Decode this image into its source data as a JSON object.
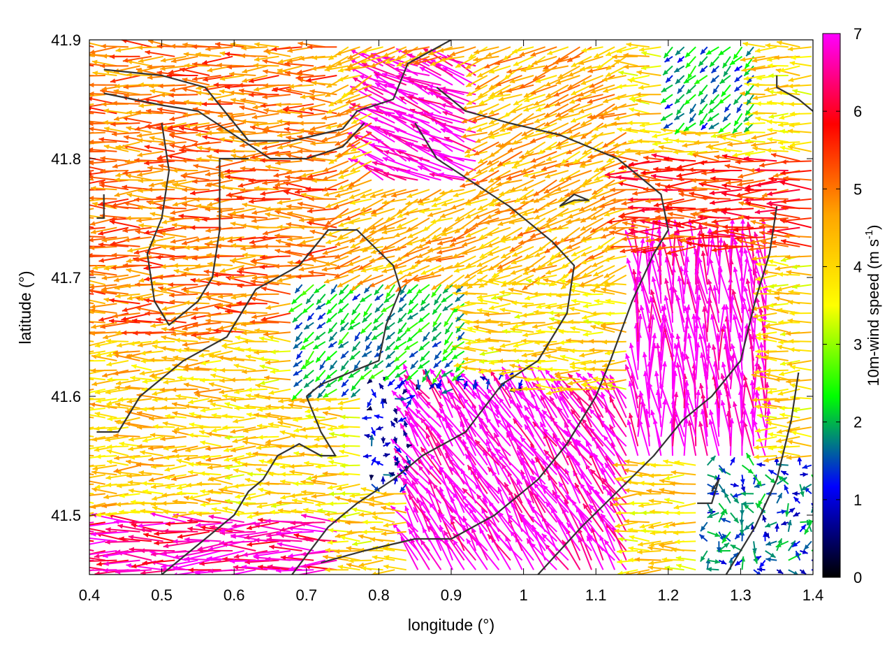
{
  "chart_data": {
    "type": "vector-field",
    "title": "",
    "xlabel": "longitude (°)",
    "ylabel": "latitude (°)",
    "xlim": [
      0.4,
      1.4
    ],
    "ylim": [
      41.45,
      41.9
    ],
    "xticks": [
      "0.4",
      "0.5",
      "0.6",
      "0.7",
      "0.8",
      "0.9",
      "1",
      "1.1",
      "1.2",
      "1.3",
      "1.4"
    ],
    "yticks": [
      "41.5",
      "41.6",
      "41.7",
      "41.8",
      "41.9"
    ],
    "grid": false,
    "colorbar": {
      "label": "10m-wind speed (m s",
      "label_superscript": "-1",
      "label_close": ")",
      "range": [
        0,
        7
      ],
      "ticks": [
        "0",
        "1",
        "2",
        "3",
        "4",
        "5",
        "6",
        "7"
      ],
      "palette": [
        "#000000",
        "#0000ff",
        "#00ff00",
        "#ffff00",
        "#ffa500",
        "#ff0000",
        "#ff00ff"
      ]
    },
    "wind_regions": [
      {
        "lon": [
          0.4,
          0.75
        ],
        "lat": [
          41.65,
          41.9
        ],
        "speed": 5.0,
        "direction": "west"
      },
      {
        "lon": [
          0.4,
          0.6
        ],
        "lat": [
          41.5,
          41.65
        ],
        "speed": 4.2,
        "direction": "west"
      },
      {
        "lon": [
          0.75,
          1.15
        ],
        "lat": [
          41.7,
          41.9
        ],
        "speed": 4.5,
        "direction": "west-southwest"
      },
      {
        "lon": [
          0.8,
          0.95
        ],
        "lat": [
          41.78,
          41.88
        ],
        "speed": 7.0,
        "direction": "west-northwest"
      },
      {
        "lon": [
          0.68,
          0.92
        ],
        "lat": [
          41.6,
          41.7
        ],
        "speed": 2.0,
        "direction": "southwest"
      },
      {
        "lon": [
          0.78,
          1.0
        ],
        "lat": [
          41.52,
          41.62
        ],
        "speed": 1.0,
        "direction": "variable"
      },
      {
        "lon": [
          0.85,
          1.15
        ],
        "lat": [
          41.45,
          41.6
        ],
        "speed": 7.0,
        "direction": "northwest"
      },
      {
        "lon": [
          1.15,
          1.35
        ],
        "lat": [
          41.55,
          41.72
        ],
        "speed": 7.0,
        "direction": "north"
      },
      {
        "lon": [
          1.15,
          1.4
        ],
        "lat": [
          41.72,
          41.8
        ],
        "speed": 5.5,
        "direction": "west"
      },
      {
        "lon": [
          1.25,
          1.4
        ],
        "lat": [
          41.45,
          41.55
        ],
        "speed": 1.5,
        "direction": "variable"
      },
      {
        "lon": [
          1.2,
          1.32
        ],
        "lat": [
          41.83,
          41.9
        ],
        "speed": 1.8,
        "direction": "southwest"
      },
      {
        "lon": [
          0.4,
          0.75
        ],
        "lat": [
          41.45,
          41.5
        ],
        "speed": 6.5,
        "direction": "west"
      }
    ],
    "contours": [
      [
        [
          0.42,
          41.875
        ],
        [
          0.5,
          41.87
        ],
        [
          0.56,
          41.86
        ],
        [
          0.6,
          41.83
        ],
        [
          0.62,
          41.815
        ],
        [
          0.68,
          41.815
        ],
        [
          0.75,
          41.825
        ],
        [
          0.77,
          41.84
        ],
        [
          0.82,
          41.85
        ],
        [
          0.84,
          41.88
        ],
        [
          0.87,
          41.89
        ],
        [
          0.9,
          41.9
        ]
      ],
      [
        [
          0.42,
          41.855
        ],
        [
          0.5,
          41.845
        ],
        [
          0.55,
          41.84
        ],
        [
          0.6,
          41.82
        ],
        [
          0.65,
          41.8
        ],
        [
          0.7,
          41.8
        ],
        [
          0.75,
          41.81
        ],
        [
          0.78,
          41.83
        ]
      ],
      [
        [
          0.5,
          41.83
        ],
        [
          0.51,
          41.79
        ],
        [
          0.5,
          41.75
        ],
        [
          0.48,
          41.72
        ],
        [
          0.49,
          41.68
        ],
        [
          0.51,
          41.66
        ],
        [
          0.55,
          41.68
        ],
        [
          0.57,
          41.7
        ],
        [
          0.58,
          41.74
        ],
        [
          0.58,
          41.8
        ],
        [
          0.62,
          41.8
        ]
      ],
      [
        [
          0.41,
          41.57
        ],
        [
          0.44,
          41.57
        ],
        [
          0.47,
          41.6
        ],
        [
          0.53,
          41.63
        ],
        [
          0.59,
          41.65
        ],
        [
          0.63,
          41.69
        ],
        [
          0.69,
          41.71
        ],
        [
          0.73,
          41.74
        ],
        [
          0.77,
          41.74
        ],
        [
          0.82,
          41.71
        ],
        [
          0.83,
          41.69
        ],
        [
          0.81,
          41.66
        ],
        [
          0.8,
          41.63
        ],
        [
          0.76,
          41.62
        ],
        [
          0.72,
          41.61
        ],
        [
          0.7,
          41.6
        ]
      ],
      [
        [
          0.7,
          41.6
        ],
        [
          0.72,
          41.57
        ],
        [
          0.74,
          41.55
        ],
        [
          0.72,
          41.55
        ],
        [
          0.69,
          41.56
        ],
        [
          0.66,
          41.55
        ],
        [
          0.64,
          41.53
        ],
        [
          0.62,
          41.52
        ],
        [
          0.6,
          41.5
        ],
        [
          0.56,
          41.48
        ],
        [
          0.52,
          41.46
        ],
        [
          0.5,
          41.45
        ]
      ],
      [
        [
          0.68,
          41.45
        ],
        [
          0.73,
          41.49
        ],
        [
          0.77,
          41.51
        ],
        [
          0.82,
          41.53
        ],
        [
          0.86,
          41.55
        ],
        [
          0.92,
          41.57
        ],
        [
          0.97,
          41.61
        ],
        [
          1.02,
          41.63
        ],
        [
          1.06,
          41.67
        ],
        [
          1.07,
          41.71
        ],
        [
          1.04,
          41.73
        ],
        [
          0.98,
          41.76
        ],
        [
          0.93,
          41.78
        ],
        [
          0.88,
          41.8
        ],
        [
          0.85,
          41.83
        ]
      ],
      [
        [
          0.72,
          41.46
        ],
        [
          0.78,
          41.47
        ],
        [
          0.85,
          41.48
        ],
        [
          0.9,
          41.48
        ],
        [
          0.96,
          41.5
        ],
        [
          1.02,
          41.53
        ],
        [
          1.06,
          41.56
        ],
        [
          1.1,
          41.6
        ],
        [
          1.12,
          41.63
        ],
        [
          1.15,
          41.68
        ],
        [
          1.18,
          41.72
        ],
        [
          1.2,
          41.74
        ],
        [
          1.19,
          41.77
        ],
        [
          1.13,
          41.8
        ],
        [
          1.05,
          41.82
        ],
        [
          0.98,
          41.83
        ],
        [
          0.92,
          41.84
        ],
        [
          0.88,
          41.86
        ]
      ],
      [
        [
          1.02,
          41.45
        ],
        [
          1.08,
          41.49
        ],
        [
          1.13,
          41.52
        ],
        [
          1.18,
          41.55
        ],
        [
          1.22,
          41.58
        ],
        [
          1.26,
          41.6
        ],
        [
          1.3,
          41.63
        ],
        [
          1.32,
          41.68
        ],
        [
          1.34,
          41.72
        ],
        [
          1.35,
          41.76
        ]
      ],
      [
        [
          1.28,
          41.45
        ],
        [
          1.32,
          41.49
        ],
        [
          1.35,
          41.53
        ],
        [
          1.37,
          41.58
        ],
        [
          1.38,
          41.62
        ]
      ],
      [
        [
          1.24,
          41.51
        ],
        [
          1.26,
          41.51
        ],
        [
          1.27,
          41.53
        ],
        [
          1.26,
          41.52
        ]
      ],
      [
        [
          1.05,
          41.76
        ],
        [
          1.07,
          41.765
        ],
        [
          1.09,
          41.765
        ],
        [
          1.07,
          41.77
        ],
        [
          1.05,
          41.76
        ]
      ],
      [
        [
          1.35,
          41.87
        ],
        [
          1.35,
          41.86
        ],
        [
          1.38,
          41.85
        ],
        [
          1.4,
          41.84
        ]
      ],
      [
        [
          0.41,
          41.75
        ],
        [
          0.42,
          41.75
        ],
        [
          0.42,
          41.77
        ]
      ]
    ]
  }
}
